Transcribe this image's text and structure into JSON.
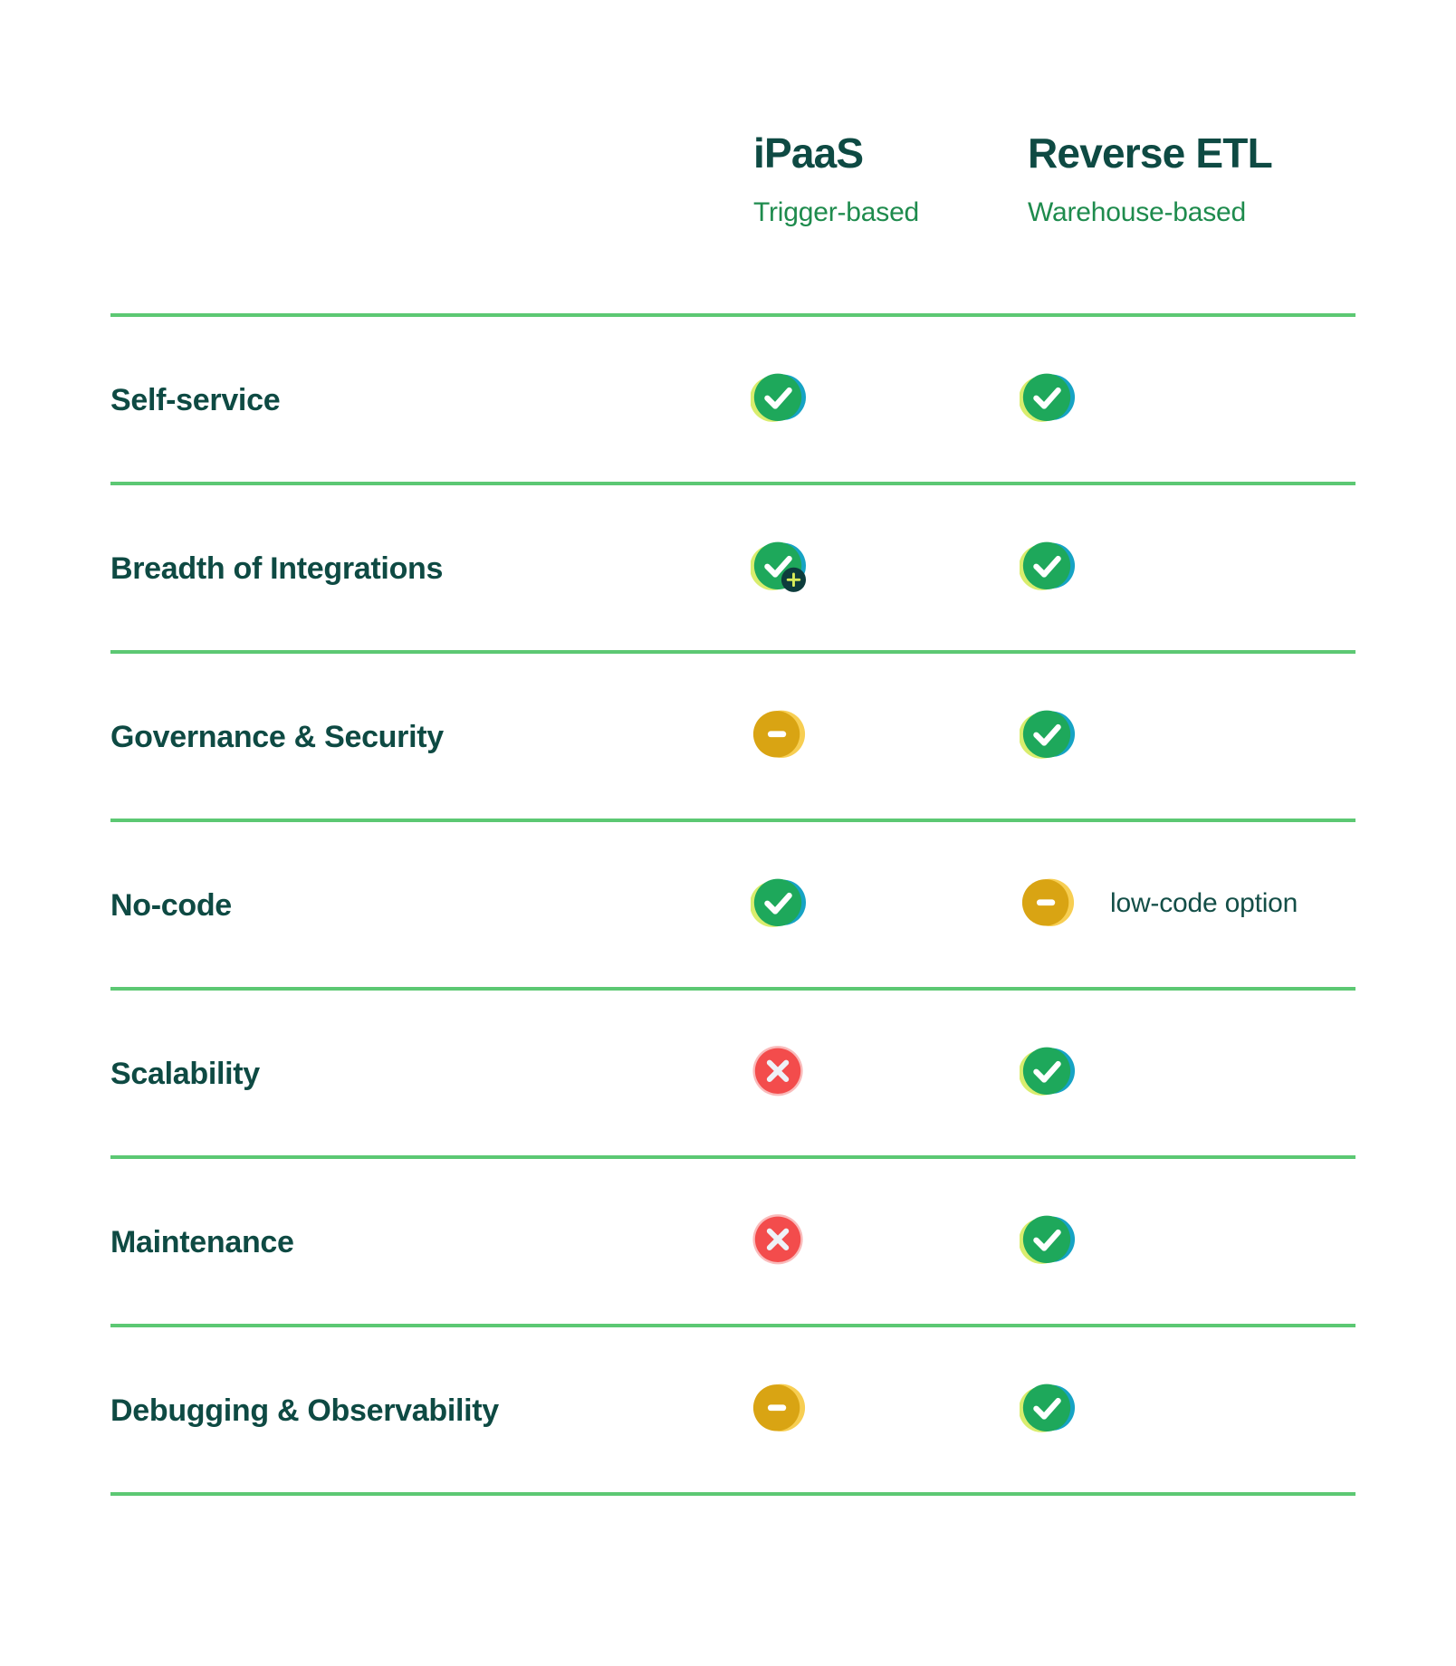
{
  "header": {
    "columns": [
      {
        "title": "iPaaS",
        "subtitle": "Trigger-based"
      },
      {
        "title": "Reverse ETL",
        "subtitle": "Warehouse-based"
      }
    ]
  },
  "table": {
    "rows": [
      {
        "label": "Self-service",
        "cells": [
          {
            "status": "check"
          },
          {
            "status": "check"
          }
        ]
      },
      {
        "label": "Breadth of Integrations",
        "cells": [
          {
            "status": "check-plus"
          },
          {
            "status": "check"
          }
        ]
      },
      {
        "label": "Governance & Security",
        "cells": [
          {
            "status": "minus"
          },
          {
            "status": "check"
          }
        ]
      },
      {
        "label": "No-code",
        "cells": [
          {
            "status": "check"
          },
          {
            "status": "minus",
            "note": "low-code option"
          }
        ]
      },
      {
        "label": "Scalability",
        "cells": [
          {
            "status": "cross"
          },
          {
            "status": "check"
          }
        ]
      },
      {
        "label": "Maintenance",
        "cells": [
          {
            "status": "cross"
          },
          {
            "status": "check"
          }
        ]
      },
      {
        "label": "Debugging & Observability",
        "cells": [
          {
            "status": "minus"
          },
          {
            "status": "check"
          }
        ]
      }
    ]
  },
  "icons": {
    "check": "check-icon",
    "check-plus": "check-plus-icon",
    "minus": "minus-icon",
    "cross": "cross-icon"
  },
  "colors": {
    "heading_teal": "#0E4A43",
    "subtitle_green": "#1E8B4D",
    "note_teal": "#134E47",
    "divider_green": "#5CC873",
    "check_green": "#1EA85B",
    "check_cyan": "#16A3C4",
    "check_lime": "#D9ED6E",
    "check_glyph": "#FFFFFF",
    "minus_amber": "#D9A413",
    "minus_light": "#F7CE52",
    "minus_glyph": "#FFFFFF",
    "cross_red": "#F34C4C",
    "cross_halo": "#F58D8D",
    "cross_glyph": "#EEF2F7",
    "badge_teal": "#0D3C3C",
    "badge_plus_lime": "#D9EC5A"
  }
}
